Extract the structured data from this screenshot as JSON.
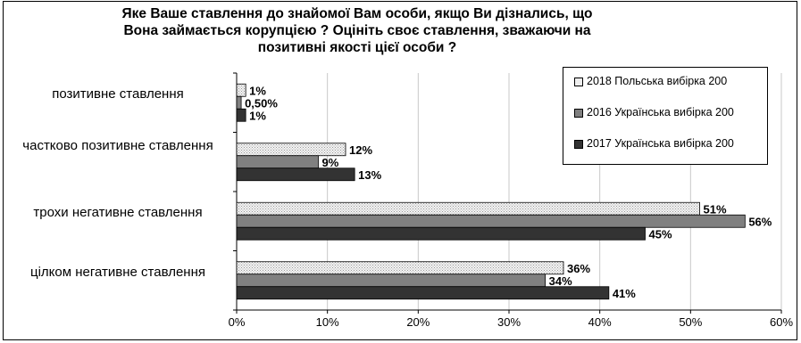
{
  "chart_data": {
    "type": "bar",
    "orientation": "horizontal",
    "title": "Яке Ваше ставлення до знайомої Вам особи, якщо Ви дізнались, що Вона займається корупцією ? Оцініть своє ставлення, зважаючи на позитивні якості цієї особи ?",
    "categories": [
      "позитивне ставлення",
      "частково позитивне ставлення",
      "трохи негативне ставлення",
      "цілком негативне ставлення"
    ],
    "series": [
      {
        "name": "2018 Польська вибірка 200",
        "color": "#eeeeee",
        "pattern": "dotted-light",
        "values": [
          1,
          12,
          51,
          36
        ],
        "labels": [
          "1%",
          "12%",
          "51%",
          "36%"
        ]
      },
      {
        "name": "2016 Українська вибірка 200",
        "color": "#808080",
        "pattern": "solid",
        "values": [
          0.5,
          9,
          56,
          34
        ],
        "labels": [
          "0,50%",
          "9%",
          "56%",
          "34%"
        ]
      },
      {
        "name": "2017 Українська вибірка 200",
        "color": "#333333",
        "pattern": "solid",
        "values": [
          1,
          13,
          45,
          41
        ],
        "labels": [
          "1%",
          "13%",
          "45%",
          "41%"
        ]
      }
    ],
    "xlim": [
      0,
      60
    ],
    "xticks": [
      "0%",
      "10%",
      "20%",
      "30%",
      "40%",
      "50%",
      "60%"
    ],
    "grid": true,
    "legend_position": "top-right"
  }
}
